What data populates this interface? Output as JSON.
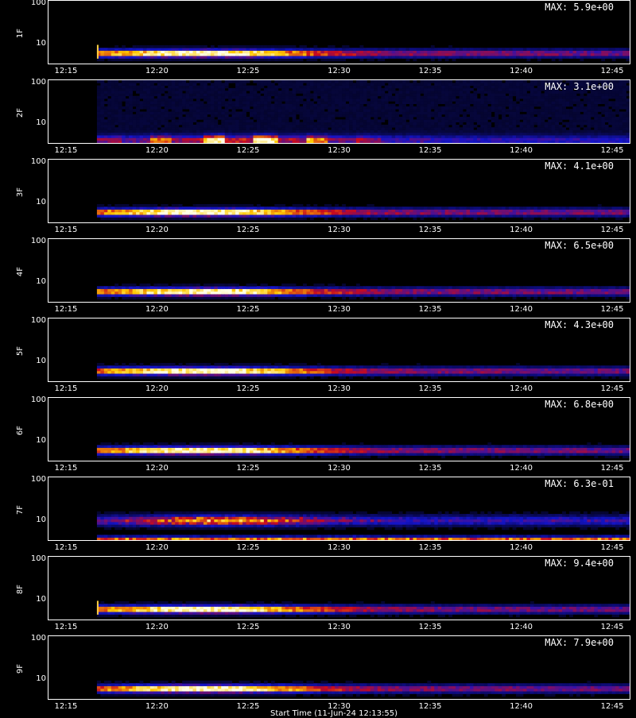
{
  "chart_data": {
    "type": "heatmap",
    "x_ticks": [
      "12:15",
      "12:20",
      "12:25",
      "12:30",
      "12:35",
      "12:40",
      "12:45"
    ],
    "x_range": [
      "12:14",
      "12:46"
    ],
    "y_scale": "log",
    "y_ticks": [
      "10",
      "100"
    ],
    "y_range": [
      3,
      120
    ],
    "colormap": "black-blue-red-yellow-white",
    "xlabel": "Start Time (11-Jun-24 12:13:55)",
    "panels": [
      {
        "label": "1F",
        "max_text": "MAX: 5.9e+00",
        "start": "12:16:40",
        "spike": true
      },
      {
        "label": "2F",
        "max_text": "MAX: 3.1e+00",
        "start": "12:16:40"
      },
      {
        "label": "3F",
        "max_text": "MAX: 4.1e+00",
        "start": "12:16:40"
      },
      {
        "label": "4F",
        "max_text": "MAX: 6.5e+00",
        "start": "12:16:40"
      },
      {
        "label": "5F",
        "max_text": "MAX: 4.3e+00",
        "start": "12:16:40"
      },
      {
        "label": "6F",
        "max_text": "MAX: 6.8e+00",
        "start": "12:16:40"
      },
      {
        "label": "7F",
        "max_text": "MAX: 6.3e-01",
        "start": "12:16:40"
      },
      {
        "label": "8F",
        "max_text": "MAX: 9.4e+00",
        "start": "12:16:40",
        "spike": true
      },
      {
        "label": "9F",
        "max_text": "MAX: 7.9e+00",
        "start": "12:16:40"
      }
    ]
  }
}
